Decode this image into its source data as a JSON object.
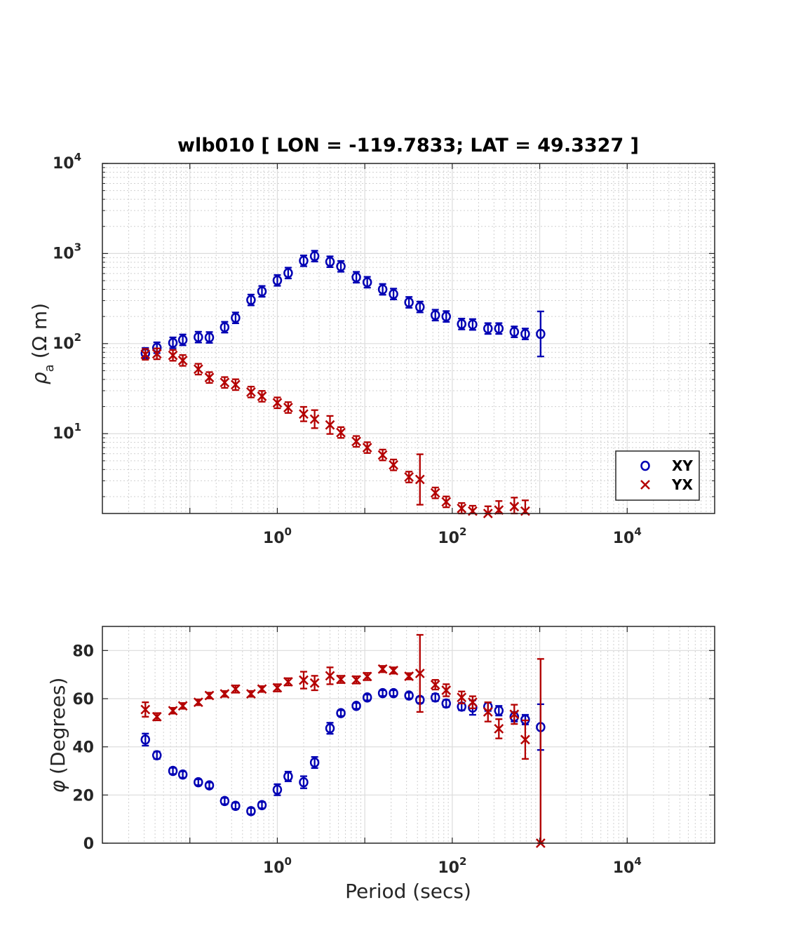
{
  "chart_data": [
    {
      "type": "scatter",
      "title": "wlb010 [ LON = -119.7833; LAT = 49.3327 ]",
      "xlabel": "",
      "ylabel_symbol": "ρ",
      "ylabel_sub": "a",
      "ylabel_unit": "(Ω m)",
      "xscale": "log",
      "yscale": "log",
      "xlim": [
        0.01,
        100000
      ],
      "ylim": [
        1.3,
        10000
      ],
      "xticks": [
        {
          "v": 1,
          "base": "10",
          "exp": "0"
        },
        {
          "v": 100,
          "base": "10",
          "exp": "2"
        },
        {
          "v": 10000,
          "base": "10",
          "exp": "4"
        }
      ],
      "yticks": [
        {
          "v": 10,
          "base": "10",
          "exp": "1"
        },
        {
          "v": 100,
          "base": "10",
          "exp": "2"
        },
        {
          "v": 1000,
          "base": "10",
          "exp": "3"
        },
        {
          "v": 10000,
          "base": "10",
          "exp": "4"
        }
      ],
      "grid": true,
      "legend": {
        "placement": "bottom-right",
        "entries": [
          "XY",
          "YX"
        ]
      },
      "series": [
        {
          "name": "XY",
          "marker": "o",
          "color": "#0000b4",
          "points": [
            [
              0.031,
              78,
              0.06
            ],
            [
              0.042,
              90,
              0.06
            ],
            [
              0.064,
              102,
              0.06
            ],
            [
              0.083,
              110,
              0.06
            ],
            [
              0.125,
              118,
              0.06
            ],
            [
              0.167,
              117,
              0.06
            ],
            [
              0.25,
              152,
              0.06
            ],
            [
              0.333,
              193,
              0.06
            ],
            [
              0.5,
              305,
              0.06
            ],
            [
              0.667,
              380,
              0.06
            ],
            [
              1.0,
              503,
              0.06
            ],
            [
              1.33,
              607,
              0.06
            ],
            [
              2.0,
              830,
              0.06
            ],
            [
              2.67,
              935,
              0.06
            ],
            [
              4.0,
              810,
              0.06
            ],
            [
              5.33,
              720,
              0.06
            ],
            [
              8.0,
              545,
              0.06
            ],
            [
              10.67,
              480,
              0.06
            ],
            [
              16,
              400,
              0.06
            ],
            [
              21.3,
              355,
              0.06
            ],
            [
              32,
              287,
              0.06
            ],
            [
              42.7,
              255,
              0.06
            ],
            [
              64,
              207,
              0.06
            ],
            [
              85.3,
              200,
              0.06
            ],
            [
              128,
              165,
              0.06
            ],
            [
              171,
              163,
              0.06
            ],
            [
              256,
              147,
              0.06
            ],
            [
              341,
              147,
              0.06
            ],
            [
              512,
              135,
              0.06
            ],
            [
              683,
              128,
              0.06
            ],
            [
              1024,
              128,
              0.25
            ]
          ]
        },
        {
          "name": "YX",
          "marker": "x",
          "color": "#b40000",
          "points": [
            [
              0.031,
              76,
              0.06
            ],
            [
              0.042,
              77,
              0.06
            ],
            [
              0.064,
              74,
              0.06
            ],
            [
              0.083,
              65,
              0.06
            ],
            [
              0.125,
              52,
              0.06
            ],
            [
              0.167,
              42,
              0.06
            ],
            [
              0.25,
              37,
              0.06
            ],
            [
              0.333,
              35,
              0.06
            ],
            [
              0.5,
              29,
              0.06
            ],
            [
              0.667,
              26,
              0.06
            ],
            [
              1.0,
              22,
              0.06
            ],
            [
              1.33,
              19.5,
              0.06
            ],
            [
              2.0,
              16.5,
              0.08
            ],
            [
              2.67,
              14.5,
              0.1
            ],
            [
              4.0,
              12.5,
              0.1
            ],
            [
              5.33,
              10.3,
              0.06
            ],
            [
              8.0,
              8.2,
              0.06
            ],
            [
              10.67,
              7.0,
              0.06
            ],
            [
              16,
              5.8,
              0.06
            ],
            [
              21.3,
              4.5,
              0.06
            ],
            [
              32,
              3.3,
              0.06
            ],
            [
              42.7,
              3.1,
              0.28
            ],
            [
              64,
              2.2,
              0.06
            ],
            [
              85.3,
              1.75,
              0.06
            ],
            [
              128,
              1.48,
              0.06
            ],
            [
              171,
              1.38,
              0.06
            ],
            [
              256,
              1.3,
              0.08
            ],
            [
              341,
              1.42,
              0.1
            ],
            [
              512,
              1.55,
              0.1
            ],
            [
              683,
              1.38,
              0.12
            ]
          ]
        }
      ]
    },
    {
      "type": "scatter",
      "title": "",
      "xlabel": "Period (secs)",
      "ylabel_symbol": "φ",
      "ylabel_unit": "(Degrees)",
      "xscale": "log",
      "yscale": "linear",
      "xlim": [
        0.01,
        100000
      ],
      "ylim": [
        0,
        90
      ],
      "xticks": [
        {
          "v": 1,
          "base": "10",
          "exp": "0"
        },
        {
          "v": 100,
          "base": "10",
          "exp": "2"
        },
        {
          "v": 10000,
          "base": "10",
          "exp": "4"
        }
      ],
      "yticks": [
        {
          "v": 0,
          "label": "0"
        },
        {
          "v": 20,
          "label": "20"
        },
        {
          "v": 40,
          "label": "40"
        },
        {
          "v": 60,
          "label": "60"
        },
        {
          "v": 80,
          "label": "80"
        }
      ],
      "grid": true,
      "series": [
        {
          "name": "XY",
          "marker": "o",
          "color": "#0000b4",
          "points": [
            [
              0.031,
              43,
              2.5
            ],
            [
              0.042,
              36.5,
              1.5
            ],
            [
              0.064,
              30,
              1.3
            ],
            [
              0.083,
              28.5,
              1.3
            ],
            [
              0.125,
              25.3,
              1.2
            ],
            [
              0.167,
              24,
              1.2
            ],
            [
              0.25,
              17.5,
              1.3
            ],
            [
              0.333,
              15.5,
              1.3
            ],
            [
              0.5,
              13.3,
              1.3
            ],
            [
              0.667,
              15.8,
              1.3
            ],
            [
              1.0,
              22.2,
              2.3
            ],
            [
              1.33,
              27.7,
              2
            ],
            [
              2.0,
              25.3,
              2.5
            ],
            [
              2.67,
              33.5,
              2.3
            ],
            [
              4.0,
              47.7,
              2.3
            ],
            [
              5.33,
              54,
              1.2
            ],
            [
              8.0,
              57,
              1.2
            ],
            [
              10.67,
              60.5,
              1.2
            ],
            [
              16,
              62.3,
              1.2
            ],
            [
              21.3,
              62.3,
              1.2
            ],
            [
              32,
              61.3,
              1.2
            ],
            [
              42.7,
              59.5,
              1.3
            ],
            [
              64,
              60.5,
              1.5
            ],
            [
              85.3,
              58,
              1.5
            ],
            [
              128,
              56.7,
              1.5
            ],
            [
              171,
              56.3,
              3
            ],
            [
              256,
              56.7,
              1.8
            ],
            [
              341,
              55,
              2
            ],
            [
              512,
              52.5,
              2
            ],
            [
              683,
              51.3,
              2
            ],
            [
              1024,
              48.2,
              9.5
            ]
          ]
        },
        {
          "name": "YX",
          "marker": "x",
          "color": "#b40000",
          "points": [
            [
              0.031,
              55.5,
              3
            ],
            [
              0.042,
              52.5,
              1.5
            ],
            [
              0.064,
              55,
              1.2
            ],
            [
              0.083,
              57,
              1.2
            ],
            [
              0.125,
              58.5,
              1.2
            ],
            [
              0.167,
              61.3,
              1.2
            ],
            [
              0.25,
              62,
              1.2
            ],
            [
              0.333,
              64,
              1.5
            ],
            [
              0.5,
              62,
              1.2
            ],
            [
              0.667,
              64,
              1.2
            ],
            [
              1.0,
              64.5,
              1.5
            ],
            [
              1.33,
              67,
              1.5
            ],
            [
              2.0,
              67.7,
              3.5
            ],
            [
              2.67,
              66.5,
              3
            ],
            [
              4.0,
              69.5,
              3.5
            ],
            [
              5.33,
              68,
              1.5
            ],
            [
              8.0,
              67.8,
              1.5
            ],
            [
              10.67,
              69.2,
              1.5
            ],
            [
              16,
              72.3,
              1.3
            ],
            [
              21.3,
              71.7,
              1.3
            ],
            [
              32,
              69.3,
              1.3
            ],
            [
              42.7,
              70.5,
              16
            ],
            [
              64,
              65.8,
              2
            ],
            [
              85.3,
              63.5,
              2.5
            ],
            [
              128,
              60.5,
              2.5
            ],
            [
              171,
              58.5,
              2.5
            ],
            [
              256,
              54.5,
              4
            ],
            [
              341,
              47.5,
              4
            ],
            [
              512,
              53.5,
              4
            ],
            [
              683,
              43,
              8
            ],
            [
              1024,
              0,
              76.5
            ]
          ]
        }
      ]
    }
  ]
}
